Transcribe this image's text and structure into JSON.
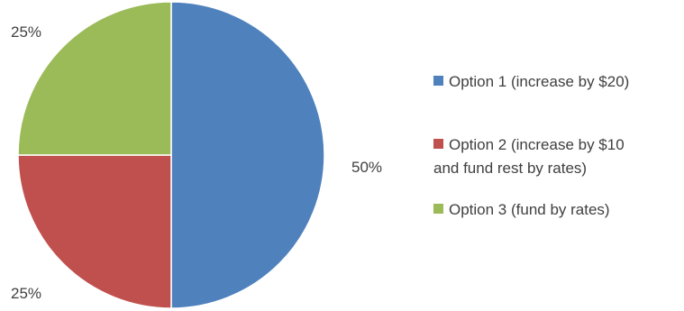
{
  "chart_data": {
    "type": "pie",
    "title": "",
    "legend_position": "right",
    "slices": [
      {
        "label": "Option 1 (increase by $20)",
        "value": 50,
        "value_label": "50%",
        "color": "#4F81BD"
      },
      {
        "label": "Option 2 (increase by $10 and fund rest by rates)",
        "value": 25,
        "value_label": "25%",
        "color": "#C0504D"
      },
      {
        "label": "Option 3 (fund by rates)",
        "value": 25,
        "value_label": "25%",
        "color": "#9BBB59"
      }
    ],
    "legend": [
      {
        "lines": [
          "Option 1 (increase by $20)"
        ]
      },
      {
        "lines": [
          "Option 2 (increase by $10",
          "and fund rest by rates)"
        ]
      },
      {
        "lines": [
          "Option 3 (fund by rates)"
        ]
      }
    ]
  }
}
